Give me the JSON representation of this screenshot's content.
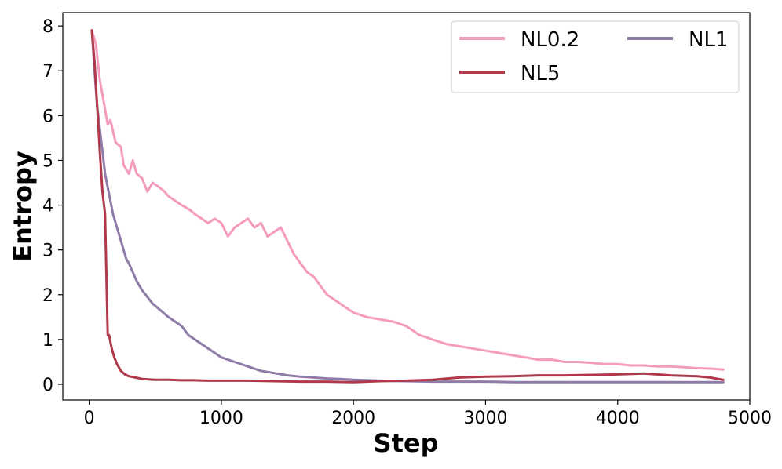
{
  "chart_data": {
    "type": "line",
    "xlabel": "Step",
    "ylabel": "Entropy",
    "xlim": [
      -200,
      5000
    ],
    "ylim": [
      -0.35,
      8.3
    ],
    "xticks": [
      0,
      1000,
      2000,
      3000,
      4000,
      5000
    ],
    "yticks": [
      0,
      1,
      2,
      3,
      4,
      5,
      6,
      7,
      8
    ],
    "grid": false,
    "legend_position": "top-right",
    "legend_columns": 2,
    "series": [
      {
        "name": "NL0.2",
        "color": "#F59BBE",
        "x": [
          20,
          50,
          80,
          110,
          140,
          160,
          200,
          240,
          260,
          300,
          330,
          360,
          400,
          440,
          480,
          530,
          570,
          600,
          650,
          700,
          760,
          800,
          850,
          900,
          950,
          1000,
          1050,
          1100,
          1150,
          1200,
          1250,
          1300,
          1350,
          1400,
          1450,
          1500,
          1550,
          1600,
          1650,
          1700,
          1750,
          1800,
          1850,
          1900,
          1950,
          2000,
          2100,
          2200,
          2300,
          2400,
          2500,
          2600,
          2700,
          2800,
          2900,
          3000,
          3100,
          3200,
          3300,
          3400,
          3500,
          3600,
          3700,
          3800,
          3900,
          4000,
          4100,
          4200,
          4300,
          4400,
          4500,
          4600,
          4700,
          4800
        ],
        "y": [
          7.9,
          7.6,
          6.8,
          6.3,
          5.8,
          5.9,
          5.4,
          5.3,
          4.9,
          4.7,
          5.0,
          4.7,
          4.6,
          4.3,
          4.5,
          4.4,
          4.3,
          4.2,
          4.1,
          4.0,
          3.9,
          3.8,
          3.7,
          3.6,
          3.7,
          3.6,
          3.3,
          3.5,
          3.6,
          3.7,
          3.5,
          3.6,
          3.3,
          3.4,
          3.5,
          3.2,
          2.9,
          2.7,
          2.5,
          2.4,
          2.2,
          2.0,
          1.9,
          1.8,
          1.7,
          1.6,
          1.5,
          1.45,
          1.4,
          1.3,
          1.1,
          1.0,
          0.9,
          0.85,
          0.8,
          0.75,
          0.7,
          0.65,
          0.6,
          0.55,
          0.55,
          0.5,
          0.5,
          0.48,
          0.45,
          0.45,
          0.42,
          0.42,
          0.4,
          0.4,
          0.38,
          0.36,
          0.35,
          0.33
        ]
      },
      {
        "name": "NL1",
        "color": "#8E7BA8",
        "x": [
          20,
          40,
          60,
          80,
          100,
          120,
          140,
          160,
          180,
          200,
          230,
          260,
          280,
          300,
          330,
          360,
          400,
          440,
          480,
          520,
          560,
          600,
          650,
          700,
          750,
          800,
          850,
          900,
          950,
          1000,
          1100,
          1200,
          1300,
          1400,
          1500,
          1600,
          1700,
          1800,
          1900,
          2000,
          2200,
          2400,
          2600,
          2800,
          3000,
          3200,
          3400,
          3600,
          3800,
          4000,
          4200,
          4400,
          4600,
          4800
        ],
        "y": [
          7.9,
          7.0,
          6.2,
          5.7,
          5.2,
          4.7,
          4.4,
          4.1,
          3.8,
          3.6,
          3.3,
          3.0,
          2.8,
          2.7,
          2.5,
          2.3,
          2.1,
          1.95,
          1.8,
          1.7,
          1.6,
          1.5,
          1.4,
          1.3,
          1.1,
          1.0,
          0.9,
          0.8,
          0.7,
          0.6,
          0.5,
          0.4,
          0.3,
          0.25,
          0.2,
          0.17,
          0.15,
          0.13,
          0.12,
          0.1,
          0.08,
          0.07,
          0.06,
          0.06,
          0.06,
          0.05,
          0.05,
          0.05,
          0.05,
          0.05,
          0.05,
          0.05,
          0.05,
          0.05
        ]
      },
      {
        "name": "NL5",
        "color": "#B0394B",
        "x": [
          20,
          40,
          60,
          80,
          100,
          120,
          140,
          150,
          170,
          190,
          210,
          240,
          270,
          300,
          350,
          400,
          500,
          600,
          700,
          800,
          900,
          1000,
          1200,
          1400,
          1600,
          1800,
          2000,
          2200,
          2400,
          2600,
          2800,
          3000,
          3200,
          3400,
          3600,
          3800,
          4000,
          4200,
          4400,
          4600,
          4700,
          4800
        ],
        "y": [
          7.9,
          7.2,
          6.2,
          5.2,
          4.3,
          3.8,
          1.1,
          1.1,
          0.8,
          0.6,
          0.45,
          0.3,
          0.22,
          0.18,
          0.15,
          0.12,
          0.1,
          0.1,
          0.09,
          0.09,
          0.08,
          0.08,
          0.08,
          0.07,
          0.06,
          0.06,
          0.05,
          0.07,
          0.08,
          0.1,
          0.15,
          0.17,
          0.18,
          0.2,
          0.2,
          0.21,
          0.22,
          0.24,
          0.2,
          0.18,
          0.15,
          0.1
        ]
      }
    ]
  }
}
